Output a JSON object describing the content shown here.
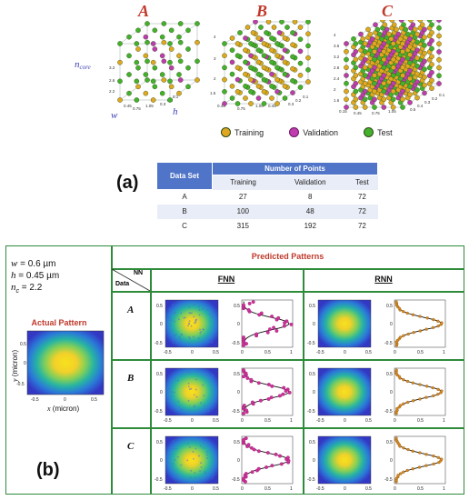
{
  "part_a": {
    "label": "(a)",
    "cubes": [
      {
        "title": "A",
        "axis_labels": {
          "n": "n",
          "n_sub": "core",
          "w": "w",
          "h": "h"
        },
        "z_ticks": [
          "3.2",
          "2.6",
          "2.2"
        ],
        "x_ticks": [
          "0.45",
          "0.75",
          "1.05"
        ],
        "y_ticks": [
          "0.3",
          "0.2",
          "0.1"
        ]
      },
      {
        "title": "B",
        "axis_labels": {},
        "z_ticks": [
          "4",
          "3",
          "2",
          "1.5"
        ],
        "x_ticks": [
          "0.45",
          "0.75",
          "1.05",
          "0.45"
        ],
        "y_ticks": [
          "0.3",
          "0.2",
          "0.1"
        ]
      },
      {
        "title": "C",
        "axis_labels": {},
        "z_ticks": [
          "4",
          "3.6",
          "3.2",
          "2.8",
          "2.4",
          "2",
          "1.6"
        ],
        "x_ticks": [
          "0.15",
          "0.45",
          "0.75",
          "1.05"
        ],
        "y_ticks": [
          "0.5",
          "0.4",
          "0.3",
          "0.2",
          "0.1"
        ]
      }
    ],
    "legend": [
      {
        "label": "Training",
        "color": "#e0a820"
      },
      {
        "label": "Validation",
        "color": "#c03ab0"
      },
      {
        "label": "Test",
        "color": "#44b12c"
      }
    ],
    "table": {
      "header": "Data Set",
      "group_header": "Number of Points",
      "columns": [
        "Training",
        "Validation",
        "Test"
      ],
      "rows": [
        {
          "set": "A",
          "values": [
            "27",
            "8",
            "72"
          ]
        },
        {
          "set": "B",
          "values": [
            "100",
            "48",
            "72"
          ]
        },
        {
          "set": "C",
          "values": [
            "315",
            "192",
            "72"
          ]
        }
      ]
    }
  },
  "part_b": {
    "label": "(b)",
    "params": {
      "w_sym": "w",
      "w_val": " = 0.6 µm",
      "h_sym": "h",
      "h_val": " = 0.45 µm",
      "n_sym": "n",
      "n_sub": "c",
      "n_val": " = 2.2"
    },
    "actual_pattern_title": "Actual Pattern",
    "actual_xlabel_var": "x",
    "actual_xlabel_unit": " (micron)",
    "actual_ylabel_var": "y",
    "actual_ylabel_unit": " (micron)",
    "actual_ticks": [
      "-0.5",
      "0",
      "0.5"
    ],
    "predicted_title": "Predicted Patterns",
    "corner_nn": "NN",
    "corner_data": "Data",
    "models": [
      "FNN",
      "RNN"
    ],
    "rows": [
      "A",
      "B",
      "C"
    ],
    "map_ticks": [
      "-0.5",
      "0",
      "0.5"
    ],
    "profile_x_ticks": [
      "0",
      "0.5",
      "1"
    ],
    "profile_y_ticks": [
      "0.5",
      "0",
      "-0.5"
    ],
    "colors": {
      "frame": "#2e8b3a",
      "accent": "#c0392b",
      "table_head": "#4f74c8",
      "magenta": "#d0309a",
      "orange": "#d98a1e"
    }
  }
}
